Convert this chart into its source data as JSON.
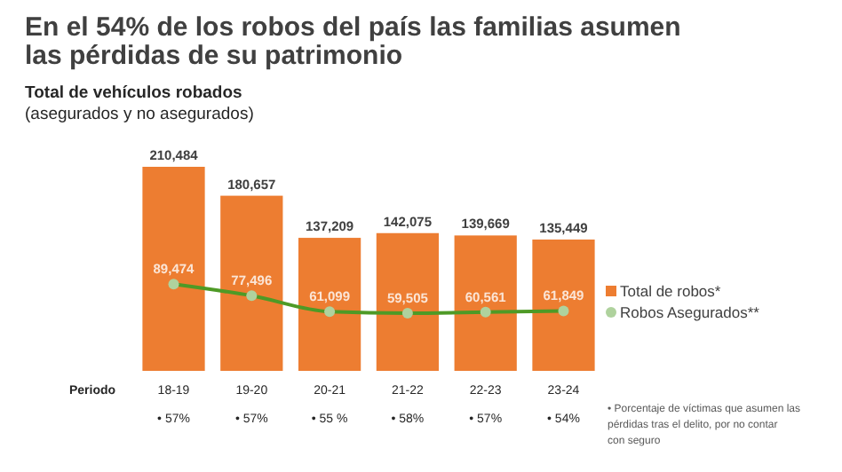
{
  "chart_data": {
    "type": "bar",
    "title": "En el 54% de los robos del país las familias asumen las pérdidas de su patrimonio",
    "subtitle": "Total  de vehículos robados\n(asegurados y no asegurados)",
    "xlabel": "Periodo",
    "categories": [
      "18-19",
      "19-20",
      "20-21",
      "21-22",
      "22-23",
      "23-24"
    ],
    "series": [
      {
        "name": "Total de robos*",
        "color": "#ed7d31",
        "values": [
          210484,
          180657,
          137209,
          142075,
          139669,
          135449
        ],
        "value_labels": [
          "210,484",
          "180,657",
          "137,209",
          "142,075",
          "139,669",
          "135,449"
        ]
      },
      {
        "name": "Robos Asegurados**",
        "type": "line",
        "color": "#4e9a26",
        "marker": "circle",
        "values": [
          89474,
          77496,
          61099,
          59505,
          60561,
          61849
        ],
        "value_labels": [
          "89,474",
          "77,496",
          "61,099",
          "59,505",
          "60,561",
          "61,849"
        ]
      }
    ],
    "legend": "right",
    "annotations": [
      "• 57%",
      "• 57%",
      "• 55 %",
      "• 58%",
      "• 57%",
      "• 54%",
      "• Porcentaje de víctimas que asumen las pérdidas tras el delito, por no contar con seguro"
    ]
  }
}
